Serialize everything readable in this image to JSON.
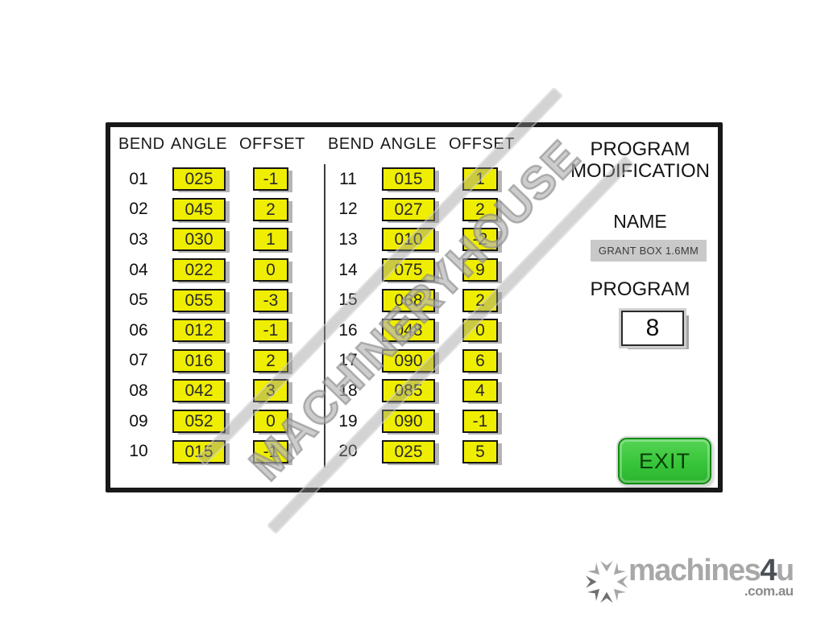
{
  "panel": {
    "headers": [
      "BEND",
      "ANGLE",
      "OFFSET"
    ],
    "left_rows": [
      {
        "bend": "01",
        "angle": "025",
        "offset": "-1"
      },
      {
        "bend": "02",
        "angle": "045",
        "offset": "2"
      },
      {
        "bend": "03",
        "angle": "030",
        "offset": "1"
      },
      {
        "bend": "04",
        "angle": "022",
        "offset": "0"
      },
      {
        "bend": "05",
        "angle": "055",
        "offset": "-3"
      },
      {
        "bend": "06",
        "angle": "012",
        "offset": "-1"
      },
      {
        "bend": "07",
        "angle": "016",
        "offset": "2"
      },
      {
        "bend": "08",
        "angle": "042",
        "offset": "3"
      },
      {
        "bend": "09",
        "angle": "052",
        "offset": "0"
      },
      {
        "bend": "10",
        "angle": "015",
        "offset": "-1"
      }
    ],
    "right_rows": [
      {
        "bend": "11",
        "angle": "015",
        "offset": "1"
      },
      {
        "bend": "12",
        "angle": "027",
        "offset": "2"
      },
      {
        "bend": "13",
        "angle": "010",
        "offset": "-2"
      },
      {
        "bend": "14",
        "angle": "075",
        "offset": "9"
      },
      {
        "bend": "15",
        "angle": "068",
        "offset": "2"
      },
      {
        "bend": "16",
        "angle": "048",
        "offset": "0"
      },
      {
        "bend": "17",
        "angle": "090",
        "offset": "6"
      },
      {
        "bend": "18",
        "angle": "085",
        "offset": "4"
      },
      {
        "bend": "19",
        "angle": "090",
        "offset": "-1"
      },
      {
        "bend": "20",
        "angle": "025",
        "offset": "5"
      }
    ],
    "title_line1": "PROGRAM",
    "title_line2": "MODIFICATION",
    "name_label": "NAME",
    "name_value": "GRANT BOX 1.6MM",
    "program_label": "PROGRAM",
    "program_value": "8",
    "exit_label": "EXIT",
    "watermark": "MACHINERYHOUSE"
  },
  "branding": {
    "logo_part1": "machines",
    "logo_part2": "4",
    "logo_part3": "u",
    "logo_domain": ".com.au",
    "icon": "snowflake-icon"
  },
  "colors": {
    "yellow": "#f0ee00",
    "yellow-border": "#161616",
    "green": "#38c53a",
    "green-border": "#128a12",
    "name-box": "#c9c9c9",
    "panel-border": "#181818"
  }
}
